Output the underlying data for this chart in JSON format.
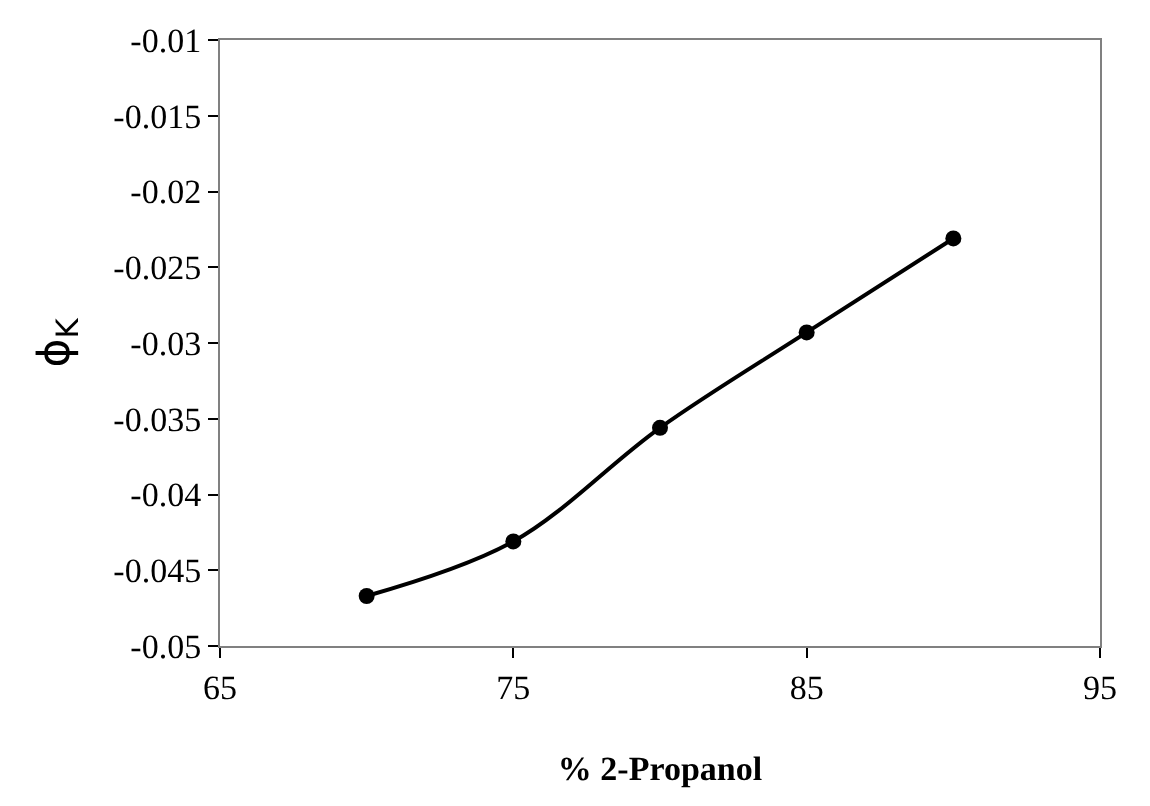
{
  "chart_data": {
    "type": "line",
    "xlabel": "% 2-Propanol",
    "ylabel": "ϕ$_{K}$",
    "x": [
      70,
      75,
      80,
      85,
      90
    ],
    "series": [
      {
        "color": "#000000",
        "values": [
          -0.0467,
          -0.0431,
          -0.0356,
          -0.0293,
          -0.0231
        ]
      }
    ],
    "xlim": [
      65,
      95
    ],
    "xticks": [
      65,
      75,
      85,
      95
    ],
    "ylim": [
      -0.05,
      -0.01
    ],
    "yticks": [
      -0.05,
      -0.045,
      -0.04,
      -0.035,
      -0.03,
      -0.025,
      -0.02,
      -0.015,
      -0.01
    ],
    "marker": "circle",
    "line_style": "solid"
  }
}
